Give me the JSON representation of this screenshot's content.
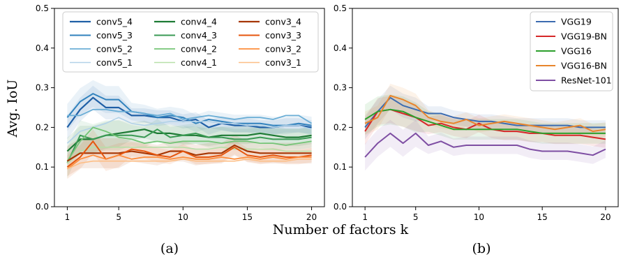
{
  "figure": {
    "shared_ylabel": "Avg. IoU",
    "shared_xlabel": "Number of factors k"
  },
  "chart_data": [
    {
      "type": "line",
      "panel_label": "(a)",
      "xlim": [
        0,
        21
      ],
      "ylim": [
        0,
        0.5
      ],
      "xticks": [
        1,
        5,
        10,
        15,
        20
      ],
      "yticks": [
        0.0,
        0.1,
        0.2,
        0.3,
        0.4,
        0.5
      ],
      "legend": {
        "placement": "top-center",
        "columns": 3
      },
      "x": [
        1,
        2,
        3,
        4,
        5,
        6,
        7,
        8,
        9,
        10,
        11,
        12,
        13,
        14,
        15,
        16,
        17,
        18,
        19,
        20
      ],
      "series": [
        {
          "name": "conv5_4",
          "color": "#1f5fa6",
          "width": 2.2,
          "band": true,
          "values": [
            0.2,
            0.245,
            0.275,
            0.25,
            0.25,
            0.23,
            0.23,
            0.225,
            0.225,
            0.215,
            0.22,
            0.2,
            0.21,
            0.205,
            0.205,
            0.2,
            0.2,
            0.205,
            0.205,
            0.2
          ]
        },
        {
          "name": "conv5_3",
          "color": "#3182bd",
          "width": 2.0,
          "band": true,
          "values": [
            0.225,
            0.265,
            0.285,
            0.27,
            0.27,
            0.24,
            0.235,
            0.225,
            0.23,
            0.225,
            0.21,
            0.22,
            0.215,
            0.21,
            0.21,
            0.21,
            0.205,
            0.205,
            0.21,
            0.205
          ]
        },
        {
          "name": "conv5_2",
          "color": "#6baed6",
          "width": 1.8,
          "band": false,
          "values": [
            0.23,
            0.23,
            0.245,
            0.245,
            0.24,
            0.24,
            0.235,
            0.23,
            0.235,
            0.22,
            0.225,
            0.23,
            0.225,
            0.22,
            0.225,
            0.225,
            0.22,
            0.23,
            0.23,
            0.21
          ]
        },
        {
          "name": "conv5_1",
          "color": "#b2d2e8",
          "width": 1.6,
          "band": false,
          "values": [
            0.16,
            0.19,
            0.2,
            0.21,
            0.225,
            0.21,
            0.205,
            0.21,
            0.215,
            0.215,
            0.215,
            0.215,
            0.21,
            0.21,
            0.205,
            0.205,
            0.2,
            0.205,
            0.205,
            0.195
          ]
        },
        {
          "name": "conv4_4",
          "color": "#1d7a34",
          "width": 2.2,
          "band": true,
          "values": [
            0.14,
            0.17,
            0.17,
            0.18,
            0.185,
            0.19,
            0.195,
            0.185,
            0.185,
            0.18,
            0.18,
            0.175,
            0.18,
            0.18,
            0.18,
            0.185,
            0.18,
            0.175,
            0.175,
            0.18
          ]
        },
        {
          "name": "conv4_3",
          "color": "#3a9a54",
          "width": 2.0,
          "band": true,
          "values": [
            0.11,
            0.18,
            0.17,
            0.18,
            0.18,
            0.18,
            0.175,
            0.195,
            0.175,
            0.18,
            0.185,
            0.175,
            0.175,
            0.17,
            0.17,
            0.175,
            0.17,
            0.17,
            0.17,
            0.175
          ]
        },
        {
          "name": "conv4_2",
          "color": "#74c476",
          "width": 1.8,
          "band": false,
          "values": [
            0.115,
            0.165,
            0.2,
            0.19,
            0.175,
            0.17,
            0.16,
            0.165,
            0.16,
            0.165,
            0.165,
            0.165,
            0.16,
            0.165,
            0.165,
            0.16,
            0.16,
            0.155,
            0.16,
            0.165
          ]
        },
        {
          "name": "conv4_1",
          "color": "#b7dfa8",
          "width": 1.6,
          "band": false,
          "values": [
            0.11,
            0.14,
            0.15,
            0.15,
            0.15,
            0.15,
            0.15,
            0.15,
            0.15,
            0.15,
            0.145,
            0.145,
            0.15,
            0.145,
            0.145,
            0.145,
            0.145,
            0.14,
            0.14,
            0.14
          ]
        },
        {
          "name": "conv3_4",
          "color": "#a63603",
          "width": 2.2,
          "band": true,
          "values": [
            0.115,
            0.135,
            0.135,
            0.135,
            0.135,
            0.14,
            0.135,
            0.13,
            0.14,
            0.14,
            0.13,
            0.135,
            0.135,
            0.155,
            0.14,
            0.135,
            0.135,
            0.135,
            0.135,
            0.135
          ]
        },
        {
          "name": "conv3_3",
          "color": "#e6550d",
          "width": 2.0,
          "band": true,
          "values": [
            0.1,
            0.125,
            0.165,
            0.12,
            0.13,
            0.145,
            0.14,
            0.13,
            0.125,
            0.14,
            0.125,
            0.125,
            0.13,
            0.15,
            0.13,
            0.125,
            0.13,
            0.125,
            0.125,
            0.13
          ]
        },
        {
          "name": "conv3_2",
          "color": "#fd8d3c",
          "width": 1.8,
          "band": false,
          "values": [
            0.095,
            0.12,
            0.13,
            0.12,
            0.13,
            0.12,
            0.125,
            0.125,
            0.12,
            0.125,
            0.12,
            0.12,
            0.125,
            0.12,
            0.125,
            0.12,
            0.125,
            0.12,
            0.125,
            0.125
          ]
        },
        {
          "name": "conv3_1",
          "color": "#fdbe85",
          "width": 1.6,
          "band": false,
          "values": [
            0.095,
            0.11,
            0.115,
            0.115,
            0.115,
            0.115,
            0.115,
            0.115,
            0.115,
            0.12,
            0.115,
            0.115,
            0.115,
            0.115,
            0.12,
            0.115,
            0.115,
            0.115,
            0.12,
            0.12
          ]
        }
      ]
    },
    {
      "type": "line",
      "panel_label": "(b)",
      "xlim": [
        0,
        21
      ],
      "ylim": [
        0,
        0.5
      ],
      "xticks": [
        1,
        5,
        10,
        15,
        20
      ],
      "yticks": [
        0.0,
        0.1,
        0.2,
        0.3,
        0.4,
        0.5
      ],
      "legend": {
        "placement": "top-right",
        "columns": 1
      },
      "x": [
        1,
        2,
        3,
        4,
        5,
        6,
        7,
        8,
        9,
        10,
        11,
        12,
        13,
        14,
        15,
        16,
        17,
        18,
        19,
        20
      ],
      "series": [
        {
          "name": "VGG19",
          "color": "#3b6bb0",
          "width": 2.0,
          "band": true,
          "values": [
            0.2,
            0.24,
            0.275,
            0.255,
            0.245,
            0.235,
            0.235,
            0.225,
            0.22,
            0.215,
            0.215,
            0.21,
            0.205,
            0.205,
            0.205,
            0.205,
            0.205,
            0.2,
            0.2,
            0.2
          ]
        },
        {
          "name": "VGG19-BN",
          "color": "#d62728",
          "width": 2.0,
          "band": true,
          "values": [
            0.19,
            0.24,
            0.245,
            0.235,
            0.225,
            0.205,
            0.21,
            0.2,
            0.195,
            0.21,
            0.195,
            0.19,
            0.19,
            0.185,
            0.185,
            0.18,
            0.18,
            0.18,
            0.175,
            0.17
          ]
        },
        {
          "name": "VGG16",
          "color": "#2ca02c",
          "width": 2.0,
          "band": true,
          "values": [
            0.22,
            0.24,
            0.245,
            0.24,
            0.225,
            0.215,
            0.205,
            0.195,
            0.195,
            0.195,
            0.195,
            0.195,
            0.195,
            0.19,
            0.185,
            0.185,
            0.185,
            0.185,
            0.185,
            0.185
          ]
        },
        {
          "name": "VGG16-BN",
          "color": "#e8852c",
          "width": 2.0,
          "band": true,
          "values": [
            0.21,
            0.225,
            0.28,
            0.27,
            0.255,
            0.225,
            0.215,
            0.21,
            0.22,
            0.205,
            0.21,
            0.215,
            0.21,
            0.205,
            0.2,
            0.195,
            0.2,
            0.205,
            0.19,
            0.195
          ]
        },
        {
          "name": "ResNet-101",
          "color": "#7e4ea3",
          "width": 2.0,
          "band": true,
          "values": [
            0.125,
            0.16,
            0.185,
            0.16,
            0.185,
            0.155,
            0.165,
            0.15,
            0.155,
            0.155,
            0.155,
            0.155,
            0.155,
            0.145,
            0.14,
            0.14,
            0.14,
            0.135,
            0.13,
            0.145
          ]
        }
      ]
    }
  ]
}
